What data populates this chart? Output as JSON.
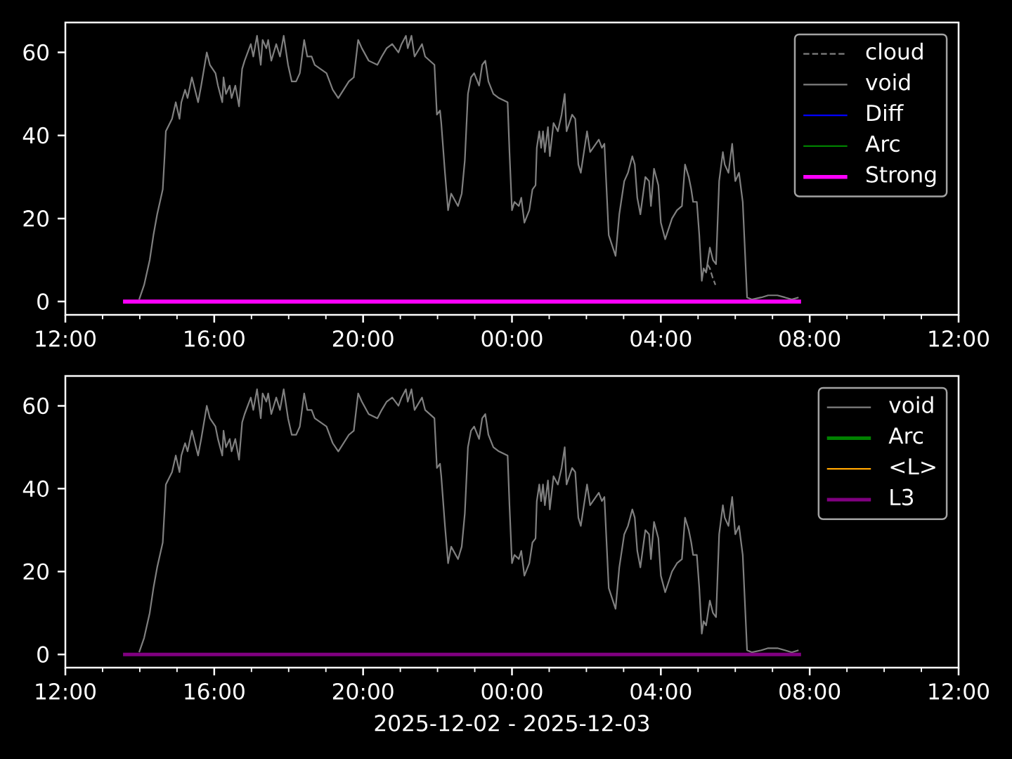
{
  "chart_data": [
    {
      "type": "line",
      "legend": "top right",
      "xlim": [
        "2025-12-02T12:00",
        "2025-12-03T12:00"
      ],
      "xticks": [
        {
          "value": "2025-12-02T12:00",
          "label": "12:00"
        },
        {
          "value": "2025-12-02T13:00",
          "label": null
        },
        {
          "value": "2025-12-02T14:00",
          "label": null
        },
        {
          "value": "2025-12-02T15:00",
          "label": null
        },
        {
          "value": "2025-12-02T16:00",
          "label": "16:00"
        },
        {
          "value": "2025-12-02T17:00",
          "label": null
        },
        {
          "value": "2025-12-02T18:00",
          "label": null
        },
        {
          "value": "2025-12-02T19:00",
          "label": null
        },
        {
          "value": "2025-12-02T20:00",
          "label": "20:00"
        },
        {
          "value": "2025-12-02T21:00",
          "label": null
        },
        {
          "value": "2025-12-02T22:00",
          "label": null
        },
        {
          "value": "2025-12-02T23:00",
          "label": null
        },
        {
          "value": "2025-12-03T00:00",
          "label": "00:00"
        },
        {
          "value": "2025-12-03T01:00",
          "label": null
        },
        {
          "value": "2025-12-03T02:00",
          "label": null
        },
        {
          "value": "2025-12-03T03:00",
          "label": null
        },
        {
          "value": "2025-12-03T04:00",
          "label": "04:00"
        },
        {
          "value": "2025-12-03T05:00",
          "label": null
        },
        {
          "value": "2025-12-03T06:00",
          "label": null
        },
        {
          "value": "2025-12-03T07:00",
          "label": null
        },
        {
          "value": "2025-12-03T08:00",
          "label": "08:00"
        },
        {
          "value": "2025-12-03T09:00",
          "label": null
        },
        {
          "value": "2025-12-03T10:00",
          "label": null
        },
        {
          "value": "2025-12-03T11:00",
          "label": null
        },
        {
          "value": "2025-12-03T12:00",
          "label": "12:00"
        }
      ],
      "ylim": [
        -3.2,
        67.2
      ],
      "yticks": [
        0,
        20,
        40,
        60
      ],
      "series": [
        {
          "name": "cloud",
          "color": "#808080",
          "line_style": "dashed",
          "x": [
            "2025-12-03T05:13",
            "2025-12-03T05:15",
            "2025-12-03T05:19",
            "2025-12-03T05:23",
            "2025-12-03T05:28"
          ],
          "values": [
            7,
            9,
            8,
            6,
            4
          ]
        },
        {
          "name": "void",
          "color": "#808080",
          "x": [
            "2025-12-02T13:59",
            "2025-12-02T14:07",
            "2025-12-02T14:16",
            "2025-12-02T14:22",
            "2025-12-02T14:28",
            "2025-12-02T14:37",
            "2025-12-02T14:40",
            "2025-12-02T14:42",
            "2025-12-02T14:52",
            "2025-12-02T14:58",
            "2025-12-02T15:04",
            "2025-12-02T15:07",
            "2025-12-02T15:13",
            "2025-12-02T15:17",
            "2025-12-02T15:24",
            "2025-12-02T15:34",
            "2025-12-02T15:39",
            "2025-12-02T15:48",
            "2025-12-02T15:53",
            "2025-12-02T16:02",
            "2025-12-02T16:06",
            "2025-12-02T16:13",
            "2025-12-02T16:15",
            "2025-12-02T16:19",
            "2025-12-02T16:25",
            "2025-12-02T16:28",
            "2025-12-02T16:34",
            "2025-12-02T16:40",
            "2025-12-02T16:45",
            "2025-12-02T16:49",
            "2025-12-02T16:59",
            "2025-12-02T17:03",
            "2025-12-02T17:09",
            "2025-12-02T17:15",
            "2025-12-02T17:18",
            "2025-12-02T17:24",
            "2025-12-02T17:27",
            "2025-12-02T17:32",
            "2025-12-02T17:40",
            "2025-12-02T17:46",
            "2025-12-02T17:52",
            "2025-12-02T17:59",
            "2025-12-02T18:05",
            "2025-12-02T18:12",
            "2025-12-02T18:18",
            "2025-12-02T18:25",
            "2025-12-02T18:30",
            "2025-12-02T18:37",
            "2025-12-02T18:42",
            "2025-12-02T19:01",
            "2025-12-02T19:11",
            "2025-12-02T19:20",
            "2025-12-02T19:37",
            "2025-12-02T19:45",
            "2025-12-02T19:52",
            "2025-12-02T19:58",
            "2025-12-02T20:09",
            "2025-12-02T20:23",
            "2025-12-02T20:30",
            "2025-12-02T20:38",
            "2025-12-02T20:47",
            "2025-12-02T20:57",
            "2025-12-02T21:02",
            "2025-12-02T21:09",
            "2025-12-02T21:12",
            "2025-12-02T21:18",
            "2025-12-02T21:23",
            "2025-12-02T21:35",
            "2025-12-02T21:40",
            "2025-12-02T21:55",
            "2025-12-02T21:59",
            "2025-12-02T22:04",
            "2025-12-02T22:06",
            "2025-12-02T22:12",
            "2025-12-02T22:17",
            "2025-12-02T22:22",
            "2025-12-02T22:33",
            "2025-12-02T22:39",
            "2025-12-02T22:44",
            "2025-12-02T22:49",
            "2025-12-02T22:54",
            "2025-12-02T22:59",
            "2025-12-02T23:07",
            "2025-12-02T23:12",
            "2025-12-02T23:17",
            "2025-12-02T23:22",
            "2025-12-02T23:30",
            "2025-12-02T23:39",
            "2025-12-02T23:53",
            "2025-12-02T23:56",
            "2025-12-03T00:00",
            "2025-12-03T00:04",
            "2025-12-03T00:11",
            "2025-12-03T00:15",
            "2025-12-03T00:20",
            "2025-12-03T00:28",
            "2025-12-03T00:33",
            "2025-12-03T00:38",
            "2025-12-03T00:40",
            "2025-12-03T00:44",
            "2025-12-03T00:47",
            "2025-12-03T00:50",
            "2025-12-03T00:53",
            "2025-12-03T00:58",
            "2025-12-03T01:01",
            "2025-12-03T01:07",
            "2025-12-03T01:14",
            "2025-12-03T01:20",
            "2025-12-03T01:25",
            "2025-12-03T01:28",
            "2025-12-03T01:37",
            "2025-12-03T01:42",
            "2025-12-03T01:47",
            "2025-12-03T01:51",
            "2025-12-03T02:01",
            "2025-12-03T02:06",
            "2025-12-03T02:20",
            "2025-12-03T02:25",
            "2025-12-03T02:29",
            "2025-12-03T02:36",
            "2025-12-03T02:47",
            "2025-12-03T02:53",
            "2025-12-03T03:01",
            "2025-12-03T03:07",
            "2025-12-03T03:14",
            "2025-12-03T03:18",
            "2025-12-03T03:22",
            "2025-12-03T03:27",
            "2025-12-03T03:35",
            "2025-12-03T03:41",
            "2025-12-03T03:44",
            "2025-12-03T03:49",
            "2025-12-03T03:56",
            "2025-12-03T04:00",
            "2025-12-03T04:07",
            "2025-12-03T04:18",
            "2025-12-03T04:26",
            "2025-12-03T04:34",
            "2025-12-03T04:39",
            "2025-12-03T04:45",
            "2025-12-03T04:49",
            "2025-12-03T04:52",
            "2025-12-03T04:58",
            "2025-12-03T05:02",
            "2025-12-03T05:06",
            "2025-12-03T05:09",
            "2025-12-03T05:13",
            "2025-12-03T05:19",
            "2025-12-03T05:24",
            "2025-12-03T05:29",
            "2025-12-03T05:34",
            "2025-12-03T05:40",
            "2025-12-03T05:43",
            "2025-12-03T05:49",
            "2025-12-03T05:55",
            "2025-12-03T06:00",
            "2025-12-03T06:06",
            "2025-12-03T06:12",
            "2025-12-03T06:19",
            "2025-12-03T06:27",
            "2025-12-03T06:42",
            "2025-12-03T06:53",
            "2025-12-03T07:08",
            "2025-12-03T07:20",
            "2025-12-03T07:31",
            "2025-12-03T07:42"
          ],
          "values": [
            0.5,
            4,
            10,
            16,
            21,
            27,
            35,
            41,
            44,
            48,
            44,
            48,
            51,
            49,
            54,
            48,
            52,
            60,
            57,
            55,
            52,
            48,
            54,
            50,
            52,
            49,
            52,
            47,
            56,
            58,
            62,
            59,
            64,
            57,
            63,
            61,
            63,
            58,
            62,
            59,
            64,
            57,
            53,
            53,
            55,
            63,
            59,
            59,
            57,
            55,
            51,
            49,
            53,
            54,
            63,
            61,
            58,
            57,
            59,
            61,
            62,
            60,
            62,
            64,
            61,
            64,
            59,
            62,
            59,
            57,
            45,
            46,
            43,
            31,
            22,
            26,
            23,
            26,
            34,
            50,
            54,
            55,
            52,
            57,
            58,
            53,
            50,
            49,
            48,
            36,
            22,
            24,
            23,
            25,
            19,
            22,
            27,
            28,
            37,
            41,
            37,
            41,
            36,
            42,
            35,
            43,
            41,
            45,
            50,
            41,
            45,
            44,
            33,
            31,
            41,
            36,
            39,
            37,
            38,
            16,
            11,
            21,
            29,
            31,
            35,
            33,
            25,
            21,
            30,
            29,
            23,
            32,
            28,
            19,
            15,
            20,
            22,
            23,
            33,
            30,
            27,
            24,
            24,
            16,
            5,
            8,
            7,
            13,
            10,
            9,
            29,
            36,
            33,
            31,
            38,
            29,
            31,
            24,
            1,
            0.5,
            1,
            1.5,
            1.5,
            1,
            0.5,
            1
          ]
        },
        {
          "name": "Diff",
          "color": "#0000ff"
        },
        {
          "name": "Arc",
          "color": "#008000"
        },
        {
          "name": "Strong",
          "color": "#ff00ff",
          "x": [
            "2025-12-02T13:33",
            "2025-12-03T07:46"
          ],
          "values": [
            0,
            0
          ]
        }
      ]
    },
    {
      "type": "line",
      "legend": "top right",
      "xlabel": "2025-12-02 - 2025-12-03",
      "xlim": [
        "2025-12-02T12:00",
        "2025-12-03T12:00"
      ],
      "xticks": [
        {
          "value": "2025-12-02T12:00",
          "label": "12:00"
        },
        {
          "value": "2025-12-02T13:00",
          "label": null
        },
        {
          "value": "2025-12-02T14:00",
          "label": null
        },
        {
          "value": "2025-12-02T15:00",
          "label": null
        },
        {
          "value": "2025-12-02T16:00",
          "label": "16:00"
        },
        {
          "value": "2025-12-02T17:00",
          "label": null
        },
        {
          "value": "2025-12-02T18:00",
          "label": null
        },
        {
          "value": "2025-12-02T19:00",
          "label": null
        },
        {
          "value": "2025-12-02T20:00",
          "label": "20:00"
        },
        {
          "value": "2025-12-02T21:00",
          "label": null
        },
        {
          "value": "2025-12-02T22:00",
          "label": null
        },
        {
          "value": "2025-12-02T23:00",
          "label": null
        },
        {
          "value": "2025-12-03T00:00",
          "label": "00:00"
        },
        {
          "value": "2025-12-03T01:00",
          "label": null
        },
        {
          "value": "2025-12-03T02:00",
          "label": null
        },
        {
          "value": "2025-12-03T03:00",
          "label": null
        },
        {
          "value": "2025-12-03T04:00",
          "label": "04:00"
        },
        {
          "value": "2025-12-03T05:00",
          "label": null
        },
        {
          "value": "2025-12-03T06:00",
          "label": null
        },
        {
          "value": "2025-12-03T07:00",
          "label": null
        },
        {
          "value": "2025-12-03T08:00",
          "label": "08:00"
        },
        {
          "value": "2025-12-03T09:00",
          "label": null
        },
        {
          "value": "2025-12-03T10:00",
          "label": null
        },
        {
          "value": "2025-12-03T11:00",
          "label": null
        },
        {
          "value": "2025-12-03T12:00",
          "label": "12:00"
        }
      ],
      "ylim": [
        -3.2,
        67.2
      ],
      "yticks": [
        0,
        20,
        40,
        60
      ],
      "series": [
        {
          "name": "void",
          "color": "#808080",
          "x": [
            "2025-12-02T13:59",
            "2025-12-02T14:07",
            "2025-12-02T14:16",
            "2025-12-02T14:22",
            "2025-12-02T14:28",
            "2025-12-02T14:37",
            "2025-12-02T14:40",
            "2025-12-02T14:42",
            "2025-12-02T14:52",
            "2025-12-02T14:58",
            "2025-12-02T15:04",
            "2025-12-02T15:07",
            "2025-12-02T15:13",
            "2025-12-02T15:17",
            "2025-12-02T15:24",
            "2025-12-02T15:34",
            "2025-12-02T15:39",
            "2025-12-02T15:48",
            "2025-12-02T15:53",
            "2025-12-02T16:02",
            "2025-12-02T16:06",
            "2025-12-02T16:13",
            "2025-12-02T16:15",
            "2025-12-02T16:19",
            "2025-12-02T16:25",
            "2025-12-02T16:28",
            "2025-12-02T16:34",
            "2025-12-02T16:40",
            "2025-12-02T16:45",
            "2025-12-02T16:49",
            "2025-12-02T16:59",
            "2025-12-02T17:03",
            "2025-12-02T17:09",
            "2025-12-02T17:15",
            "2025-12-02T17:18",
            "2025-12-02T17:24",
            "2025-12-02T17:27",
            "2025-12-02T17:32",
            "2025-12-02T17:40",
            "2025-12-02T17:46",
            "2025-12-02T17:52",
            "2025-12-02T17:59",
            "2025-12-02T18:05",
            "2025-12-02T18:12",
            "2025-12-02T18:18",
            "2025-12-02T18:25",
            "2025-12-02T18:30",
            "2025-12-02T18:37",
            "2025-12-02T18:42",
            "2025-12-02T19:01",
            "2025-12-02T19:11",
            "2025-12-02T19:20",
            "2025-12-02T19:37",
            "2025-12-02T19:45",
            "2025-12-02T19:52",
            "2025-12-02T19:58",
            "2025-12-02T20:09",
            "2025-12-02T20:23",
            "2025-12-02T20:30",
            "2025-12-02T20:38",
            "2025-12-02T20:47",
            "2025-12-02T20:57",
            "2025-12-02T21:02",
            "2025-12-02T21:09",
            "2025-12-02T21:12",
            "2025-12-02T21:18",
            "2025-12-02T21:23",
            "2025-12-02T21:35",
            "2025-12-02T21:40",
            "2025-12-02T21:55",
            "2025-12-02T21:59",
            "2025-12-02T22:04",
            "2025-12-02T22:06",
            "2025-12-02T22:12",
            "2025-12-02T22:17",
            "2025-12-02T22:22",
            "2025-12-02T22:33",
            "2025-12-02T22:39",
            "2025-12-02T22:44",
            "2025-12-02T22:49",
            "2025-12-02T22:54",
            "2025-12-02T22:59",
            "2025-12-02T23:07",
            "2025-12-02T23:12",
            "2025-12-02T23:17",
            "2025-12-02T23:22",
            "2025-12-02T23:30",
            "2025-12-02T23:39",
            "2025-12-02T23:53",
            "2025-12-02T23:56",
            "2025-12-03T00:00",
            "2025-12-03T00:04",
            "2025-12-03T00:11",
            "2025-12-03T00:15",
            "2025-12-03T00:20",
            "2025-12-03T00:28",
            "2025-12-03T00:33",
            "2025-12-03T00:38",
            "2025-12-03T00:40",
            "2025-12-03T00:44",
            "2025-12-03T00:47",
            "2025-12-03T00:50",
            "2025-12-03T00:53",
            "2025-12-03T00:58",
            "2025-12-03T01:01",
            "2025-12-03T01:07",
            "2025-12-03T01:14",
            "2025-12-03T01:20",
            "2025-12-03T01:25",
            "2025-12-03T01:28",
            "2025-12-03T01:37",
            "2025-12-03T01:42",
            "2025-12-03T01:47",
            "2025-12-03T01:51",
            "2025-12-03T02:01",
            "2025-12-03T02:06",
            "2025-12-03T02:20",
            "2025-12-03T02:25",
            "2025-12-03T02:29",
            "2025-12-03T02:36",
            "2025-12-03T02:47",
            "2025-12-03T02:53",
            "2025-12-03T03:01",
            "2025-12-03T03:07",
            "2025-12-03T03:14",
            "2025-12-03T03:18",
            "2025-12-03T03:22",
            "2025-12-03T03:27",
            "2025-12-03T03:35",
            "2025-12-03T03:41",
            "2025-12-03T03:44",
            "2025-12-03T03:49",
            "2025-12-03T03:56",
            "2025-12-03T04:00",
            "2025-12-03T04:07",
            "2025-12-03T04:18",
            "2025-12-03T04:26",
            "2025-12-03T04:34",
            "2025-12-03T04:39",
            "2025-12-03T04:45",
            "2025-12-03T04:49",
            "2025-12-03T04:52",
            "2025-12-03T04:58",
            "2025-12-03T05:02",
            "2025-12-03T05:06",
            "2025-12-03T05:09",
            "2025-12-03T05:13",
            "2025-12-03T05:19",
            "2025-12-03T05:24",
            "2025-12-03T05:29",
            "2025-12-03T05:34",
            "2025-12-03T05:40",
            "2025-12-03T05:43",
            "2025-12-03T05:49",
            "2025-12-03T05:55",
            "2025-12-03T06:00",
            "2025-12-03T06:06",
            "2025-12-03T06:12",
            "2025-12-03T06:19",
            "2025-12-03T06:27",
            "2025-12-03T06:42",
            "2025-12-03T06:53",
            "2025-12-03T07:08",
            "2025-12-03T07:20",
            "2025-12-03T07:31",
            "2025-12-03T07:42"
          ],
          "values": [
            0.5,
            4,
            10,
            16,
            21,
            27,
            35,
            41,
            44,
            48,
            44,
            48,
            51,
            49,
            54,
            48,
            52,
            60,
            57,
            55,
            52,
            48,
            54,
            50,
            52,
            49,
            52,
            47,
            56,
            58,
            62,
            59,
            64,
            57,
            63,
            61,
            63,
            58,
            62,
            59,
            64,
            57,
            53,
            53,
            55,
            63,
            59,
            59,
            57,
            55,
            51,
            49,
            53,
            54,
            63,
            61,
            58,
            57,
            59,
            61,
            62,
            60,
            62,
            64,
            61,
            64,
            59,
            62,
            59,
            57,
            45,
            46,
            43,
            31,
            22,
            26,
            23,
            26,
            34,
            50,
            54,
            55,
            52,
            57,
            58,
            53,
            50,
            49,
            48,
            36,
            22,
            24,
            23,
            25,
            19,
            22,
            27,
            28,
            37,
            41,
            37,
            41,
            36,
            42,
            35,
            43,
            41,
            45,
            50,
            41,
            45,
            44,
            33,
            31,
            41,
            36,
            39,
            37,
            38,
            16,
            11,
            21,
            29,
            31,
            35,
            33,
            25,
            21,
            30,
            29,
            23,
            32,
            28,
            19,
            15,
            20,
            22,
            23,
            33,
            30,
            27,
            24,
            24,
            16,
            5,
            8,
            7,
            13,
            10,
            9,
            29,
            36,
            33,
            31,
            38,
            29,
            31,
            24,
            1,
            0.5,
            1,
            1.5,
            1.5,
            1,
            0.5,
            1
          ]
        },
        {
          "name": "Arc",
          "color": "#008000"
        },
        {
          "name": "<L>",
          "color": "#ffa500"
        },
        {
          "name": "L3",
          "color": "#800080",
          "x": [
            "2025-12-02T13:33",
            "2025-12-03T07:46"
          ],
          "values": [
            0,
            0
          ]
        }
      ]
    }
  ]
}
